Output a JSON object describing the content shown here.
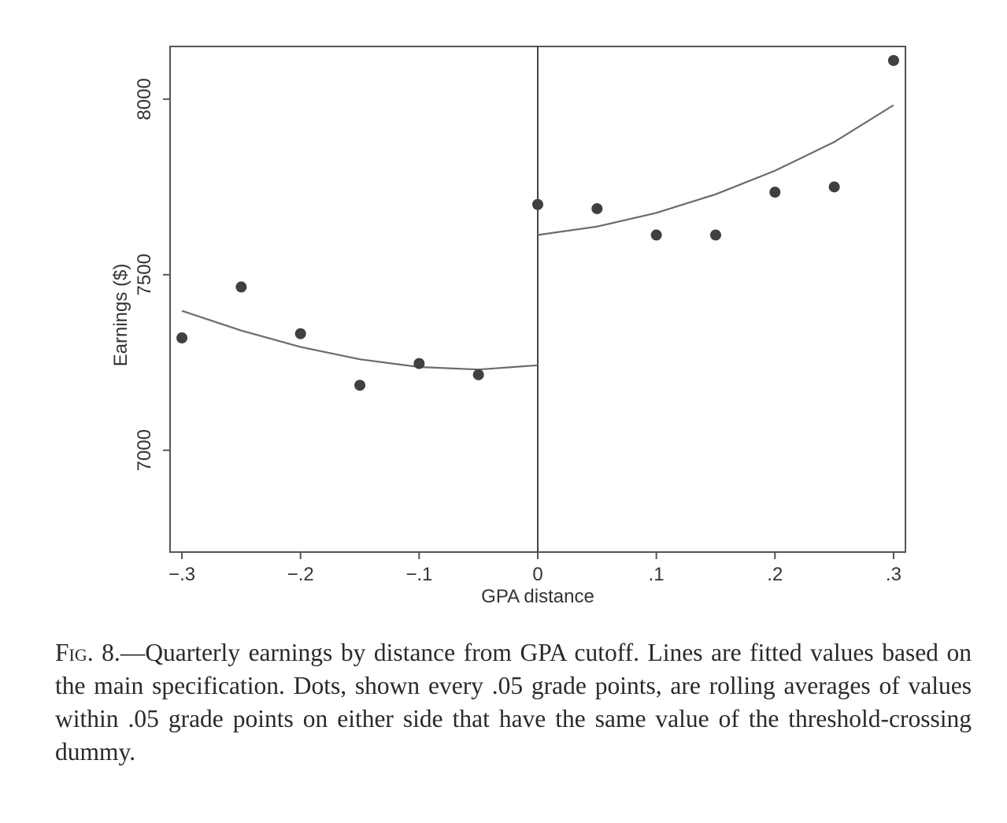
{
  "chart_data": {
    "type": "scatter",
    "xlabel": "GPA distance",
    "ylabel": "Earnings ($)",
    "xlim": [
      -0.31,
      0.31
    ],
    "ylim": [
      6710,
      8150
    ],
    "x_ticks": [
      -0.3,
      -0.2,
      -0.1,
      0,
      0.1,
      0.2,
      0.3
    ],
    "x_tick_labels": [
      "−.3",
      "−.2",
      "−.1",
      "0",
      ".1",
      ".2",
      ".3"
    ],
    "y_ticks": [
      7000,
      7500,
      8000
    ],
    "y_tick_labels": [
      "7000",
      "7500",
      "8000"
    ],
    "cutoff_x": 0,
    "grid": false,
    "legend": "none",
    "colors": {
      "dots": "#404040",
      "line": "#6b6b6b",
      "frame": "#555555",
      "cutoff": "#444444"
    },
    "series": [
      {
        "kind": "points",
        "x": [
          -0.3,
          -0.25,
          -0.2,
          -0.15,
          -0.1,
          -0.05,
          0,
          0.05,
          0.1,
          0.15,
          0.2,
          0.25,
          0.3
        ],
        "y": [
          7320,
          7465,
          7332,
          7185,
          7247,
          7215,
          7700,
          7688,
          7613,
          7613,
          7735,
          7750,
          8110
        ]
      },
      {
        "kind": "fit-left",
        "x": [
          -0.3,
          -0.25,
          -0.2,
          -0.15,
          -0.1,
          -0.05,
          0
        ],
        "y": [
          7397,
          7341,
          7294,
          7259,
          7237,
          7230,
          7242
        ]
      },
      {
        "kind": "fit-right",
        "x": [
          0,
          0.05,
          0.1,
          0.15,
          0.2,
          0.25,
          0.3
        ],
        "y": [
          7613,
          7637,
          7676,
          7729,
          7796,
          7878,
          7983
        ]
      }
    ]
  },
  "caption": {
    "label": "Fig. 8.",
    "text": "—Quarterly earnings by distance from GPA cutoff. Lines are fitted values based on the main specification. Dots, shown every .05 grade points, are rolling averages of values within .05 grade points on either side that have the same value of the threshold-crossing dummy."
  }
}
